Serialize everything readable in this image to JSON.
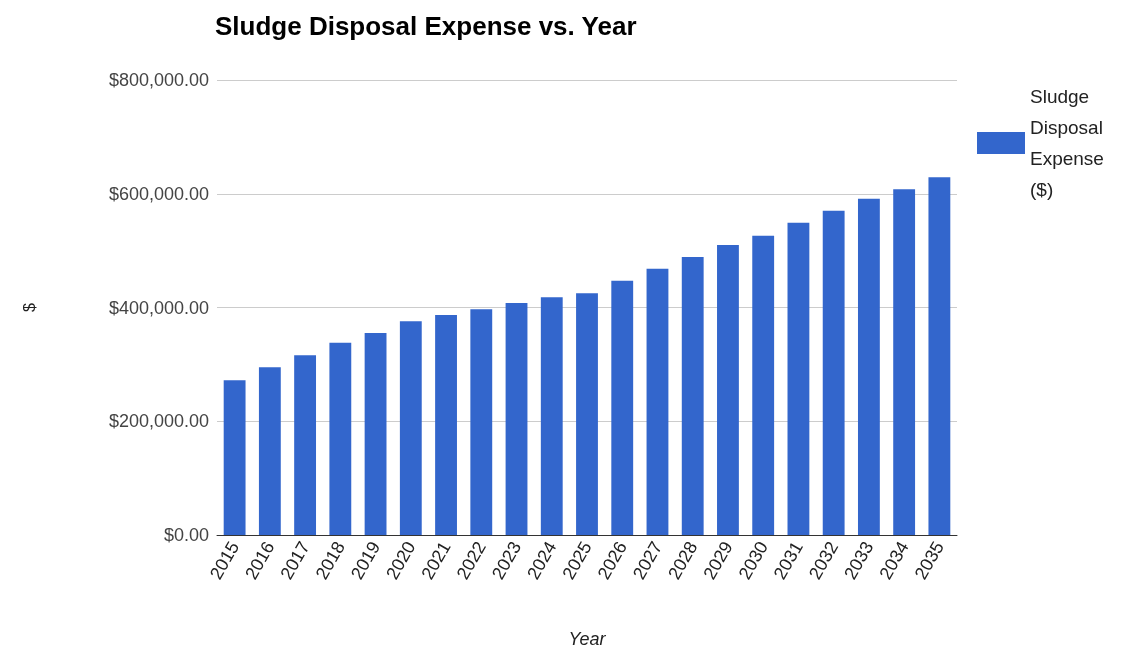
{
  "chart_data": {
    "type": "bar",
    "title": "Sludge Disposal Expense vs. Year",
    "xlabel": "Year",
    "ylabel": "$",
    "categories": [
      "2015",
      "2016",
      "2017",
      "2018",
      "2019",
      "2020",
      "2021",
      "2022",
      "2023",
      "2024",
      "2025",
      "2026",
      "2027",
      "2028",
      "2029",
      "2030",
      "2031",
      "2032",
      "2033",
      "2034",
      "2035"
    ],
    "series": [
      {
        "name": "Sludge Disposal Expense ($)",
        "color": "#3366cc",
        "values": [
          272000,
          295000,
          316000,
          338000,
          355000,
          376000,
          387000,
          397000,
          408000,
          418000,
          425000,
          447000,
          468000,
          489000,
          510000,
          526000,
          549000,
          570000,
          591000,
          608000,
          629000
        ]
      }
    ],
    "ylim": [
      0,
      800000
    ],
    "yticks": [
      {
        "value": 0,
        "label": "$0.00"
      },
      {
        "value": 200000,
        "label": "$200,000.00"
      },
      {
        "value": 400000,
        "label": "$400,000.00"
      },
      {
        "value": 600000,
        "label": "$600,000.00"
      },
      {
        "value": 800000,
        "label": "$800,000.00"
      }
    ],
    "grid": "y",
    "legend": "top right"
  }
}
